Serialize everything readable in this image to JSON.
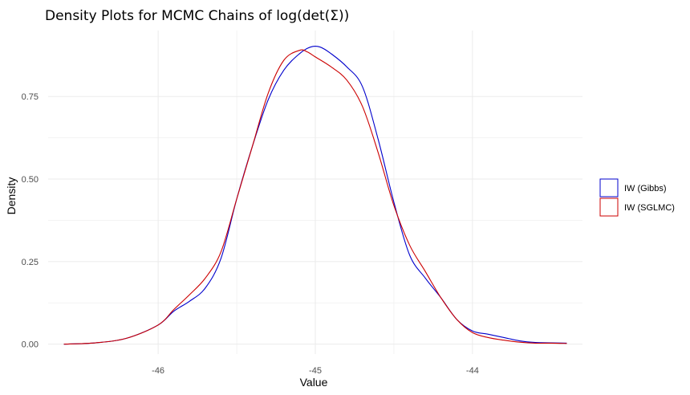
{
  "chart_data": {
    "type": "line",
    "title": "Density Plots for MCMC Chains of log(det(Σ))",
    "xlabel": "Value",
    "ylabel": "Density",
    "xlim": [
      -46.7,
      -43.3
    ],
    "ylim": [
      -0.03,
      0.95
    ],
    "x_ticks": [
      -46,
      -45,
      -44
    ],
    "x_tick_labels": [
      "-46",
      "-45",
      "-44"
    ],
    "y_ticks": [
      0,
      0.25,
      0.5,
      0.75
    ],
    "y_tick_labels": [
      "0.00",
      "0.25",
      "0.50",
      "0.75"
    ],
    "grid": true,
    "legend_position": "right",
    "series": [
      {
        "name": "IW (Gibbs)",
        "color": "#0000cc",
        "x": [
          -46.6,
          -46.4,
          -46.2,
          -46.0,
          -45.9,
          -45.8,
          -45.7,
          -45.6,
          -45.5,
          -45.4,
          -45.3,
          -45.2,
          -45.1,
          -45.03,
          -44.97,
          -44.9,
          -44.8,
          -44.7,
          -44.6,
          -44.5,
          -44.4,
          -44.3,
          -44.2,
          -44.1,
          -44.0,
          -43.9,
          -43.8,
          -43.7,
          -43.6,
          -43.5,
          -43.4
        ],
        "y": [
          0.0,
          0.004,
          0.018,
          0.058,
          0.1,
          0.13,
          0.17,
          0.26,
          0.44,
          0.6,
          0.74,
          0.83,
          0.88,
          0.9,
          0.9,
          0.88,
          0.84,
          0.78,
          0.62,
          0.43,
          0.27,
          0.2,
          0.14,
          0.075,
          0.04,
          0.03,
          0.02,
          0.01,
          0.005,
          0.004,
          0.003
        ]
      },
      {
        "name": "IW (SGLMC)",
        "color": "#cc0000",
        "x": [
          -46.6,
          -46.4,
          -46.2,
          -46.0,
          -45.9,
          -45.8,
          -45.7,
          -45.6,
          -45.5,
          -45.4,
          -45.3,
          -45.2,
          -45.1,
          -45.05,
          -45.0,
          -44.9,
          -44.8,
          -44.7,
          -44.6,
          -44.5,
          -44.4,
          -44.3,
          -44.2,
          -44.1,
          -44.0,
          -43.9,
          -43.8,
          -43.7,
          -43.6,
          -43.5,
          -43.4
        ],
        "y": [
          0.0,
          0.004,
          0.018,
          0.058,
          0.105,
          0.15,
          0.2,
          0.28,
          0.44,
          0.6,
          0.76,
          0.86,
          0.89,
          0.885,
          0.87,
          0.84,
          0.8,
          0.72,
          0.58,
          0.42,
          0.3,
          0.22,
          0.14,
          0.075,
          0.035,
          0.02,
          0.012,
          0.006,
          0.003,
          0.003,
          0.002
        ]
      }
    ]
  }
}
